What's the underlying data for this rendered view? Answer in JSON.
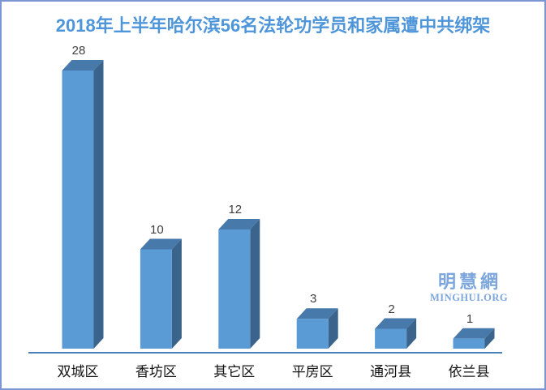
{
  "title": "2018年上半年哈尔滨56名法轮功学员和家属遭中共绑架",
  "watermark": {
    "cn": "明慧網",
    "en": "MINGHUI.ORG"
  },
  "chart_data": {
    "type": "bar",
    "style": "3d-column",
    "title": "2018年上半年哈尔滨56名法轮功学员和家属遭中共绑架",
    "categories": [
      "双城区",
      "香坊区",
      "其它区",
      "平房区",
      "通河县",
      "依兰县"
    ],
    "values": [
      28,
      10,
      12,
      3,
      2,
      1
    ],
    "xlabel": "",
    "ylabel": "",
    "ylim": [
      0,
      28
    ],
    "grid": false,
    "legend": false,
    "data_labels": true
  },
  "colors": {
    "bar_front": "#5b9bd5",
    "bar_top": "#4779aa",
    "bar_side": "#3a648c",
    "axis_line": "#4a7ebb",
    "title_text": "#4e95d9",
    "value_label": "#404040",
    "category_label": "#141414",
    "watermark": "#7ca6dc",
    "border": "#7b96d2"
  }
}
